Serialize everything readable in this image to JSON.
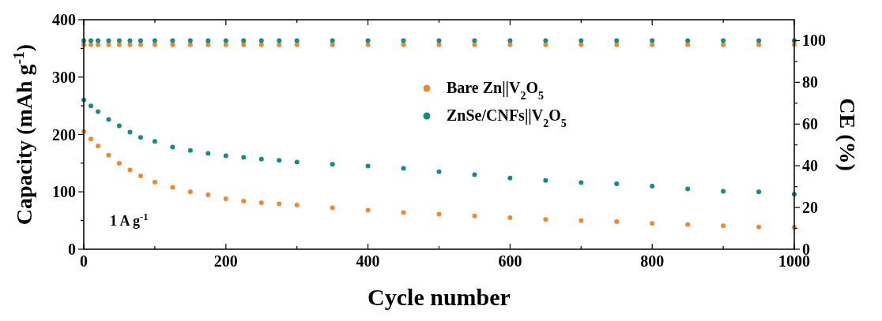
{
  "chart_data": {
    "type": "scatter",
    "xlabel": "Cycle number",
    "ylabel": "Capacity (mAh g$^{-1}$)",
    "y2label": "CE (%)",
    "annotations": [
      "1 A g$^{-1}$"
    ],
    "xlim": [
      0,
      1000
    ],
    "xticks": [
      0,
      {
        "value": 100,
        "label": null
      },
      200,
      {
        "value": 300,
        "label": null
      },
      400,
      {
        "value": 500,
        "label": null
      },
      600,
      {
        "value": 700,
        "label": null
      },
      800,
      {
        "value": 900,
        "label": null
      },
      1000
    ],
    "ylim": [
      0,
      400
    ],
    "yticks": [
      0,
      {
        "value": 50,
        "label": null
      },
      100,
      {
        "value": 150,
        "label": null
      },
      200,
      {
        "value": 250,
        "label": null
      },
      300,
      {
        "value": 350,
        "label": null
      },
      400
    ],
    "y2lim": [
      0,
      110
    ],
    "y2ticks": [
      0,
      {
        "value": 10,
        "label": null
      },
      20,
      {
        "value": 30,
        "label": null
      },
      40,
      {
        "value": 50,
        "label": null
      },
      60,
      {
        "value": 70,
        "label": null
      },
      80,
      {
        "value": 90,
        "label": null
      },
      100
    ],
    "marker": "circle",
    "legend": "top",
    "grid": false,
    "x": [
      0,
      10,
      20,
      35,
      50,
      65,
      80,
      100,
      125,
      150,
      175,
      200,
      225,
      250,
      275,
      300,
      350,
      400,
      450,
      500,
      550,
      600,
      650,
      700,
      750,
      800,
      850,
      900,
      950,
      1000
    ],
    "series": [
      {
        "name": "Bare Zn||V$_{2}$O$_{5}$",
        "color": "#f0882e",
        "values": [
          205,
          192,
          180,
          164,
          150,
          138,
          128,
          117,
          108,
          100,
          95,
          88,
          84,
          81,
          79,
          77,
          72,
          68,
          64,
          61,
          58,
          55,
          52,
          50,
          48,
          45,
          43,
          41,
          39,
          38
        ]
      },
      {
        "name": "ZnSe/CNFs||V$_{2}$O$_{5}$",
        "color": "#138b87",
        "values": [
          260,
          250,
          240,
          226,
          215,
          204,
          195,
          188,
          178,
          172,
          167,
          163,
          160,
          157,
          155,
          152,
          148,
          145,
          141,
          135,
          130,
          124,
          120,
          116,
          114,
          110,
          105,
          101,
          100,
          96
        ]
      },
      {
        "color": "#f0882e",
        "axis": "y2",
        "values": [
          98,
          98,
          98,
          98,
          98,
          98,
          98,
          98,
          98,
          98,
          98,
          98,
          98,
          98,
          98,
          98,
          98,
          98,
          98,
          98,
          98,
          98,
          98,
          98,
          98,
          98,
          98,
          98,
          98,
          98
        ]
      },
      {
        "color": "#138b87",
        "axis": "y2",
        "values": [
          100,
          100,
          100,
          100,
          100,
          100,
          100,
          100,
          100,
          100,
          100,
          100,
          100,
          100,
          100,
          100,
          100,
          100,
          100,
          100,
          100,
          100,
          100,
          100,
          100,
          100,
          100,
          100,
          100,
          100
        ]
      }
    ]
  }
}
